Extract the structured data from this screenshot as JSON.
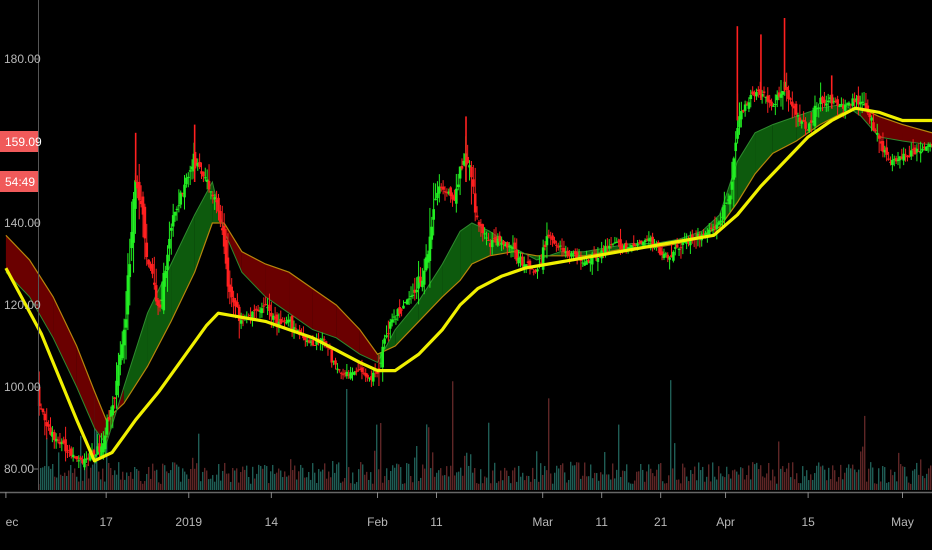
{
  "chart_data": {
    "type": "candlestick",
    "title": "",
    "xlabel": "",
    "ylabel": "",
    "ylim": [
      75,
      190
    ],
    "grid": false,
    "legend": "none",
    "y_ticks": [
      "80.00",
      "100.00",
      "120.00",
      "140.00",
      "180.00"
    ],
    "y_tick_values": [
      80,
      100,
      120,
      140,
      180
    ],
    "x_ticks": [
      "ec",
      "17",
      "2019",
      "14",
      "Feb",
      "11",
      "Mar",
      "11",
      "21",
      "Apr",
      "15",
      "May"
    ],
    "x_tick_days": [
      0,
      17,
      31,
      45,
      63,
      73,
      91,
      101,
      111,
      122,
      136,
      152
    ],
    "x_range_days": [
      -1,
      157
    ],
    "last_price_label": "159.09",
    "countdown_label": "54:49",
    "colors": {
      "background": "#000000",
      "up": "#22ee22",
      "down": "#ff2020",
      "slow_ma": "#f0f000",
      "ribbon_up": "#0d5a0d",
      "ribbon_down": "#6a0000",
      "badge": "#f05a5a",
      "axis_text": "#b8b8b8"
    },
    "price_path": [
      [
        0,
        108
      ],
      [
        4,
        104
      ],
      [
        7,
        90
      ],
      [
        10,
        85
      ],
      [
        13,
        82
      ],
      [
        16,
        85
      ],
      [
        18,
        95
      ],
      [
        20,
        112
      ],
      [
        22,
        152
      ],
      [
        24,
        132
      ],
      [
        26,
        118
      ],
      [
        28,
        140
      ],
      [
        30,
        148
      ],
      [
        32,
        156
      ],
      [
        34,
        150
      ],
      [
        36,
        144
      ],
      [
        38,
        122
      ],
      [
        40,
        116
      ],
      [
        42,
        118
      ],
      [
        44,
        120
      ],
      [
        46,
        115
      ],
      [
        48,
        116
      ],
      [
        50,
        113
      ],
      [
        52,
        110
      ],
      [
        54,
        112
      ],
      [
        56,
        104
      ],
      [
        58,
        103
      ],
      [
        60,
        104
      ],
      [
        62,
        102
      ],
      [
        63,
        104
      ],
      [
        64,
        110
      ],
      [
        65,
        115
      ],
      [
        68,
        121
      ],
      [
        71,
        128
      ],
      [
        73,
        149
      ],
      [
        76,
        146
      ],
      [
        78,
        158
      ],
      [
        80,
        140
      ],
      [
        82,
        135
      ],
      [
        84,
        136
      ],
      [
        86,
        133
      ],
      [
        88,
        130
      ],
      [
        90,
        128
      ],
      [
        92,
        137
      ],
      [
        94,
        134
      ],
      [
        96,
        132
      ],
      [
        98,
        131
      ],
      [
        100,
        132
      ],
      [
        103,
        135
      ],
      [
        106,
        134
      ],
      [
        109,
        136
      ],
      [
        112,
        132
      ],
      [
        115,
        135
      ],
      [
        118,
        137
      ],
      [
        121,
        140
      ],
      [
        123,
        148
      ],
      [
        124,
        165
      ],
      [
        126,
        170
      ],
      [
        128,
        172
      ],
      [
        130,
        168
      ],
      [
        132,
        174
      ],
      [
        134,
        166
      ],
      [
        136,
        163
      ],
      [
        138,
        170
      ],
      [
        140,
        170
      ],
      [
        142,
        168
      ],
      [
        144,
        170
      ],
      [
        146,
        168
      ],
      [
        148,
        160
      ],
      [
        150,
        155
      ],
      [
        152,
        156
      ],
      [
        155,
        158
      ],
      [
        157,
        159
      ]
    ],
    "slow_ma": [
      [
        0,
        129
      ],
      [
        6,
        113
      ],
      [
        12,
        92
      ],
      [
        15,
        82
      ],
      [
        18,
        84
      ],
      [
        22,
        92
      ],
      [
        26,
        99
      ],
      [
        30,
        107
      ],
      [
        34,
        115
      ],
      [
        36,
        118
      ],
      [
        40,
        117
      ],
      [
        44,
        116
      ],
      [
        48,
        114
      ],
      [
        52,
        112
      ],
      [
        56,
        109
      ],
      [
        60,
        106
      ],
      [
        63,
        104
      ],
      [
        66,
        104
      ],
      [
        70,
        108
      ],
      [
        74,
        114
      ],
      [
        77,
        120
      ],
      [
        80,
        124
      ],
      [
        84,
        127
      ],
      [
        88,
        129
      ],
      [
        92,
        130
      ],
      [
        96,
        131
      ],
      [
        100,
        132
      ],
      [
        104,
        133
      ],
      [
        108,
        134
      ],
      [
        112,
        135
      ],
      [
        116,
        136
      ],
      [
        120,
        137
      ],
      [
        124,
        142
      ],
      [
        128,
        149
      ],
      [
        132,
        155
      ],
      [
        136,
        161
      ],
      [
        140,
        165
      ],
      [
        144,
        168
      ],
      [
        148,
        167
      ],
      [
        152,
        165
      ],
      [
        157,
        165
      ]
    ],
    "ribbon": [
      [
        0,
        137,
        128
      ],
      [
        4,
        131,
        122
      ],
      [
        8,
        122,
        112
      ],
      [
        12,
        110,
        100
      ],
      [
        15,
        99,
        90
      ],
      [
        17,
        92,
        86
      ],
      [
        20,
        96,
        100
      ],
      [
        24,
        105,
        118
      ],
      [
        28,
        116,
        130
      ],
      [
        32,
        128,
        142
      ],
      [
        35,
        140,
        150
      ],
      [
        37,
        140,
        138
      ],
      [
        40,
        133,
        128
      ],
      [
        44,
        130,
        122
      ],
      [
        48,
        128,
        118
      ],
      [
        52,
        124,
        114
      ],
      [
        56,
        120,
        112
      ],
      [
        60,
        114,
        108
      ],
      [
        63,
        108,
        106
      ],
      [
        66,
        110,
        114
      ],
      [
        70,
        116,
        121
      ],
      [
        74,
        122,
        130
      ],
      [
        77,
        126,
        138
      ],
      [
        79,
        130,
        140
      ],
      [
        82,
        132,
        138
      ],
      [
        86,
        133,
        134
      ],
      [
        90,
        132,
        131
      ],
      [
        94,
        132,
        133
      ],
      [
        98,
        132,
        133
      ],
      [
        102,
        133,
        134
      ],
      [
        106,
        134,
        135
      ],
      [
        110,
        134,
        135
      ],
      [
        114,
        135,
        136
      ],
      [
        118,
        137,
        138
      ],
      [
        121,
        139,
        142
      ],
      [
        124,
        145,
        155
      ],
      [
        127,
        152,
        162
      ],
      [
        130,
        157,
        164
      ],
      [
        134,
        160,
        166
      ],
      [
        138,
        164,
        168
      ],
      [
        142,
        167,
        169
      ],
      [
        145,
        168,
        166
      ],
      [
        148,
        166,
        161
      ],
      [
        152,
        164,
        160
      ],
      [
        157,
        162,
        159
      ]
    ]
  }
}
